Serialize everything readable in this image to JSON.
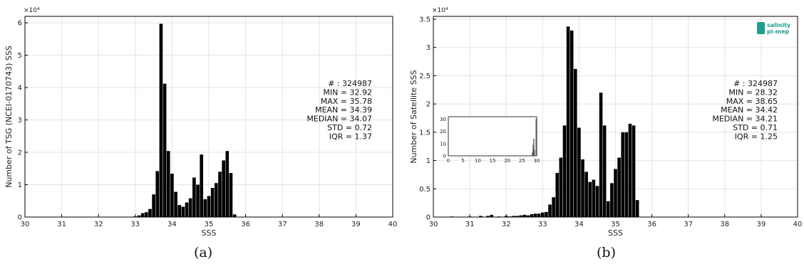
{
  "captions": [
    "(a)",
    "(b)"
  ],
  "logo_text": [
    "salinity",
    "pi-mep"
  ],
  "colors": {
    "bar": "#000000",
    "grid": "#e3e3e3",
    "axis": "#000000",
    "inset_bar": "#555555",
    "logo": "#1f9e8f"
  },
  "chart_data": [
    {
      "type": "bar",
      "xlabel": "SSS",
      "ylabel": "Number of TSG (NCEI-0170743) SSS",
      "exponent": "×10⁴",
      "xlim": [
        30,
        40
      ],
      "ylim": [
        0,
        6.2
      ],
      "xticks": [
        30,
        31,
        32,
        33,
        34,
        35,
        36,
        37,
        38,
        39,
        40
      ],
      "yticks": [
        0,
        1,
        2,
        3,
        4,
        5,
        6
      ],
      "grid": true,
      "bin_width": 0.1,
      "x": [
        33.0,
        33.1,
        33.2,
        33.3,
        33.4,
        33.5,
        33.6,
        33.7,
        33.8,
        33.9,
        34.0,
        34.1,
        34.2,
        34.3,
        34.4,
        34.5,
        34.6,
        34.7,
        34.8,
        34.9,
        35.0,
        35.1,
        35.2,
        35.3,
        35.4,
        35.5,
        35.6,
        35.7
      ],
      "values": [
        0.02,
        0.05,
        0.12,
        0.15,
        0.25,
        0.7,
        1.42,
        5.97,
        4.12,
        2.04,
        1.34,
        0.78,
        0.37,
        0.32,
        0.45,
        0.58,
        1.22,
        1.0,
        1.93,
        0.55,
        0.65,
        0.9,
        1.05,
        1.4,
        1.75,
        2.04,
        1.36,
        0.08
      ],
      "stats": [
        "# : 324987",
        "MIN = 32.92",
        "MAX =  35.78",
        "MEAN = 34.39",
        "MEDIAN = 34.07",
        "STD = 0.72",
        "IQR = 1.37"
      ]
    },
    {
      "type": "bar",
      "xlabel": "SSS",
      "ylabel": "Number of Satellite SSS",
      "exponent": "×10⁴",
      "xlim": [
        30,
        40
      ],
      "ylim": [
        0,
        3.55
      ],
      "xticks": [
        30,
        31,
        32,
        33,
        34,
        35,
        36,
        37,
        38,
        39,
        40
      ],
      "yticks": [
        0,
        0.5,
        1,
        1.5,
        2,
        2.5,
        3,
        3.5
      ],
      "grid": true,
      "bin_width": 0.1,
      "x": [
        30.5,
        31.0,
        31.3,
        31.5,
        31.6,
        31.8,
        32.0,
        32.1,
        32.2,
        32.3,
        32.4,
        32.5,
        32.6,
        32.7,
        32.8,
        32.9,
        33.0,
        33.1,
        33.2,
        33.3,
        33.4,
        33.5,
        33.6,
        33.7,
        33.8,
        33.9,
        34.0,
        34.1,
        34.2,
        34.3,
        34.4,
        34.5,
        34.6,
        34.7,
        34.8,
        34.9,
        35.0,
        35.1,
        35.2,
        35.3,
        35.4,
        35.5,
        35.6,
        35.7
      ],
      "values": [
        0.01,
        0.01,
        0.02,
        0.02,
        0.04,
        0.01,
        0.02,
        0.01,
        0.02,
        0.02,
        0.03,
        0.04,
        0.03,
        0.05,
        0.06,
        0.06,
        0.08,
        0.09,
        0.22,
        0.35,
        0.78,
        1.05,
        1.62,
        3.37,
        3.3,
        2.62,
        1.58,
        1.02,
        0.8,
        0.62,
        0.66,
        0.55,
        2.2,
        1.62,
        0.28,
        0.6,
        0.85,
        1.05,
        1.5,
        1.5,
        1.65,
        1.62,
        0.3,
        0.0
      ],
      "stats": [
        "# : 324987",
        "MIN = 28.32",
        "MAX =  38.65",
        "MEAN = 34.42",
        "MEDIAN = 34.21",
        "STD = 0.71",
        "IQR = 1.25"
      ],
      "inset": {
        "type": "bar",
        "xlim": [
          0,
          30
        ],
        "ylim": [
          0,
          32
        ],
        "xticks": [
          0,
          5,
          10,
          15,
          20,
          25,
          30
        ],
        "yticks": [
          0,
          10,
          20,
          30
        ],
        "x": [
          28.4,
          28.6,
          28.8,
          29.0,
          29.2,
          29.8
        ],
        "values": [
          1,
          3,
          9,
          14,
          5,
          30
        ]
      }
    }
  ]
}
